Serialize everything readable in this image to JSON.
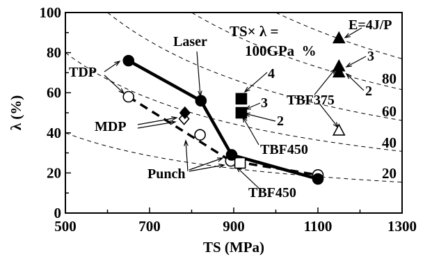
{
  "chart_data": {
    "type": "scatter",
    "title": "",
    "xlabel": "TS (MPa)",
    "ylabel": "λ (%)",
    "xlim": [
      500,
      1300
    ],
    "ylim": [
      0,
      100
    ],
    "xticks": [
      "500",
      "700",
      "900",
      "1100",
      "1300"
    ],
    "yticks": [
      "0",
      "20",
      "40",
      "60",
      "80",
      "100"
    ],
    "grid": false,
    "series": [
      {
        "key": "laser",
        "marker": "filled-circle",
        "connected": "solid-thick",
        "points": [
          {
            "x": 650,
            "y": 76
          },
          {
            "x": 822,
            "y": 56
          },
          {
            "x": 895,
            "y": 29
          },
          {
            "x": 1100,
            "y": 17
          }
        ]
      },
      {
        "key": "punch",
        "marker": "open-circle",
        "connected": "none",
        "points": [
          {
            "x": 650,
            "y": 58
          },
          {
            "x": 820,
            "y": 39
          },
          {
            "x": 893,
            "y": 26
          },
          {
            "x": 1100,
            "y": 19
          }
        ]
      },
      {
        "key": "mdp_filled",
        "marker": "filled-diamond",
        "connected": "none",
        "points": [
          {
            "x": 784,
            "y": 50
          }
        ]
      },
      {
        "key": "mdp_open",
        "marker": "open-diamond",
        "connected": "none",
        "points": [
          {
            "x": 782,
            "y": 47
          }
        ]
      },
      {
        "key": "tbf450_filled",
        "marker": "filled-square",
        "connected": "none",
        "points": [
          {
            "x": 918,
            "y": 57
          },
          {
            "x": 918,
            "y": 50
          }
        ]
      },
      {
        "key": "tbf450_open",
        "marker": "open-square",
        "connected": "none",
        "points": [
          {
            "x": 915,
            "y": 25
          }
        ]
      },
      {
        "key": "tbf375_filled",
        "marker": "filled-triangle",
        "connected": "none",
        "points": [
          {
            "x": 1150,
            "y": 87
          },
          {
            "x": 1150,
            "y": 73
          },
          {
            "x": 1150,
            "y": 70
          }
        ]
      },
      {
        "key": "tbf375_open",
        "marker": "open-triangle",
        "connected": "none",
        "points": [
          {
            "x": 1150,
            "y": 41
          }
        ]
      }
    ],
    "dashed_trend": {
      "points": [
        {
          "x": 650,
          "y": 58
        },
        {
          "x": 893,
          "y": 26
        },
        {
          "x": 1100,
          "y": 19
        }
      ]
    },
    "iso_curves": {
      "expression_line1": "TS× λ =",
      "expression_line2": "100GPa  %",
      "levels": [
        100,
        80,
        60,
        40,
        20
      ],
      "labels": [
        "80",
        "60",
        "40",
        "20"
      ]
    },
    "annotations": {
      "tdp": "TDP",
      "mdp": "MDP",
      "laser": "Laser",
      "punch": "Punch",
      "tbf450_lower": "TBF450",
      "tbf450_upper": "TBF450",
      "tbf375": "TBF375",
      "energy": "E=4J/P",
      "n4": "4",
      "n3a": "3",
      "n2a": "2",
      "n3b": "3",
      "n2b": "2"
    }
  }
}
